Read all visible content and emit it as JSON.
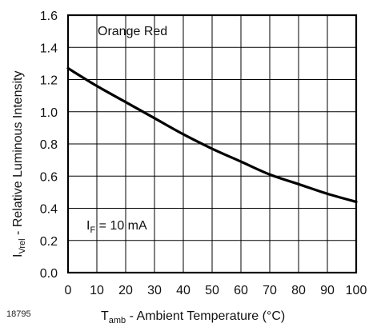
{
  "figure_id": "18795",
  "chart_data": {
    "type": "line",
    "title": "",
    "xlabel": {
      "main": "T",
      "sub": "amb",
      "rest": " - Ambient Temperature (°C)"
    },
    "ylabel": {
      "main": "I",
      "sub": "Vrel",
      "rest": "  - Relative Luminous Intensity"
    },
    "xlim": [
      0,
      100
    ],
    "ylim": [
      0.0,
      1.6
    ],
    "xticks": [
      0,
      10,
      20,
      30,
      40,
      50,
      60,
      70,
      80,
      90,
      100
    ],
    "yticks": [
      "0.0",
      "0.2",
      "0.4",
      "0.6",
      "0.8",
      "1.0",
      "1.2",
      "1.4",
      "1.6"
    ],
    "grid": true,
    "annotations": {
      "series_label": "Orange Red",
      "condition": {
        "main": "I",
        "sub": "F",
        "rest": " = 10 mA"
      }
    },
    "series": [
      {
        "x": [
          0,
          10,
          20,
          30,
          40,
          50,
          60,
          70,
          80,
          90,
          100
        ],
        "y": [
          1.27,
          1.16,
          1.06,
          0.96,
          0.86,
          0.77,
          0.69,
          0.61,
          0.55,
          0.49,
          0.44
        ]
      }
    ]
  }
}
